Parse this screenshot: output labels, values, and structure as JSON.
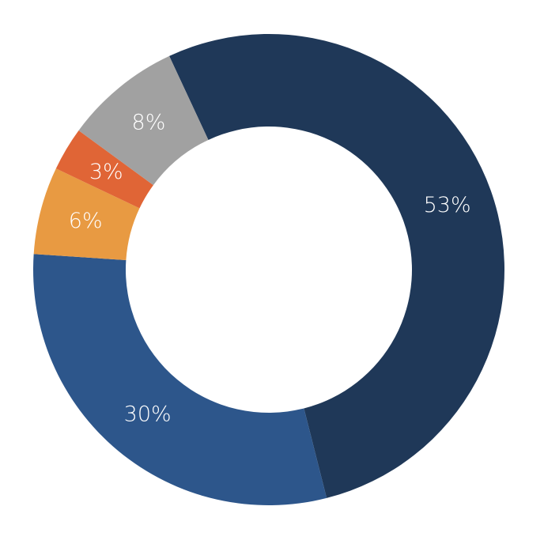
{
  "chart_data": {
    "type": "donut",
    "values": [
      53,
      30,
      6,
      3,
      8
    ],
    "value_labels": [
      "53%",
      "30%",
      "6%",
      "3%",
      "8%"
    ],
    "colors": [
      "#1f3858",
      "#2d568b",
      "#e89a42",
      "#e06536",
      "#a1a1a1"
    ]
  }
}
